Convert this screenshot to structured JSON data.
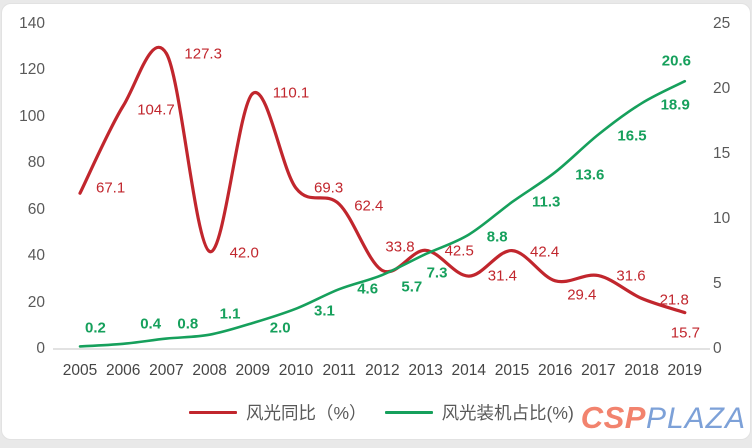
{
  "chart_data": {
    "type": "line",
    "title": "",
    "categories": [
      "2005",
      "2006",
      "2007",
      "2008",
      "2009",
      "2010",
      "2011",
      "2012",
      "2013",
      "2014",
      "2015",
      "2016",
      "2017",
      "2018",
      "2019"
    ],
    "series": [
      {
        "name": "风光同比（%）",
        "axis": "left",
        "color": "#c1262d",
        "values": [
          67.1,
          104.7,
          127.3,
          42.0,
          110.1,
          69.3,
          62.4,
          33.8,
          42.5,
          31.4,
          42.4,
          29.4,
          31.6,
          21.8,
          15.7
        ],
        "labels": [
          "67.1",
          "104.7",
          "127.3",
          "42.0",
          "110.1",
          "69.3",
          "62.4",
          "33.8",
          "42.5",
          "31.4",
          "42.4",
          "29.4",
          "31.6",
          "21.8",
          "15.7"
        ]
      },
      {
        "name": "风光装机占比(%)",
        "axis": "right",
        "color": "#16a05c",
        "values": [
          0.2,
          0.4,
          0.8,
          1.1,
          2.0,
          3.1,
          4.6,
          5.7,
          7.3,
          8.8,
          11.3,
          13.6,
          16.5,
          18.9,
          20.6
        ],
        "labels": [
          "0.2",
          "0.4",
          "0.8",
          "1.1",
          "2.0",
          "3.1",
          "4.6",
          "5.7",
          "7.3",
          "8.8",
          "11.3",
          "13.6",
          "16.5",
          "18.9",
          "20.6"
        ]
      }
    ],
    "left_axis": {
      "range": [
        0,
        140
      ],
      "ticks": [
        "140",
        "120",
        "100",
        "80",
        "60",
        "40",
        "20",
        "0"
      ]
    },
    "right_axis": {
      "range": [
        0,
        25
      ],
      "ticks": [
        "25",
        "20",
        "15",
        "10",
        "5",
        "0"
      ]
    },
    "grid": false,
    "legend_position": "bottom"
  },
  "logo": {
    "part1": "CSP",
    "part2": "PLAZA"
  },
  "colors": {
    "series1": "#c1262d",
    "series2": "#16a05c",
    "axis_text": "#595959",
    "axis_line": "#d9d9d9",
    "logo_red": "#f2836e",
    "logo_blue": "#7da1d8",
    "card_bg": "#ffffff",
    "page_bg": "#e9e9e9"
  }
}
